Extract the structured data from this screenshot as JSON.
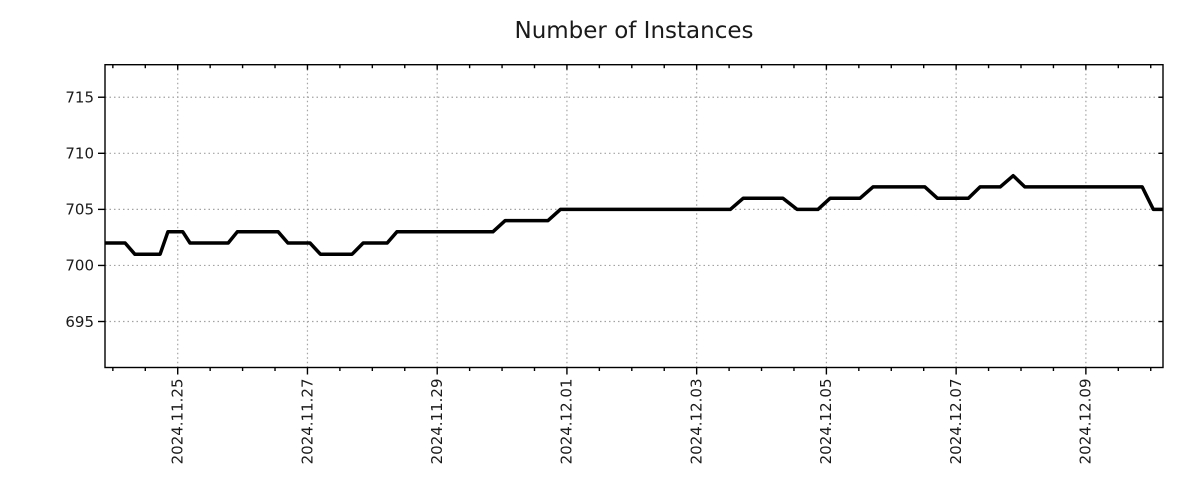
{
  "figure": {
    "title": "Number of Instances"
  },
  "chart_data": {
    "type": "line",
    "title": "Number of Instances",
    "xlabel": "",
    "ylabel": "",
    "legend": "none",
    "grid": {
      "show": true,
      "color": "#a3a3a3",
      "style": "dotted"
    },
    "frame_color": "#000000",
    "x_axis": {
      "unit": "days",
      "range": [
        0,
        16.31
      ],
      "major_ticks": [
        {
          "d": 1.121,
          "label": "2024.11.25"
        },
        {
          "d": 3.121,
          "label": "2024.11.27"
        },
        {
          "d": 5.121,
          "label": "2024.11.29"
        },
        {
          "d": 7.121,
          "label": "2024.12.01"
        },
        {
          "d": 9.121,
          "label": "2024.12.03"
        },
        {
          "d": 11.121,
          "label": "2024.12.05"
        },
        {
          "d": 13.121,
          "label": "2024.12.07"
        },
        {
          "d": 15.121,
          "label": "2024.12.09"
        }
      ],
      "minor_ticks": {
        "start": 0.121,
        "step": 0.5
      }
    },
    "y_axis": {
      "range": [
        690.9,
        717.9
      ],
      "ticks": [
        695,
        700,
        705,
        710,
        715
      ]
    },
    "series": [
      {
        "name": "instances",
        "color": "#000000",
        "points": [
          [
            0.0,
            702
          ],
          [
            0.31,
            702
          ],
          [
            0.46,
            701
          ],
          [
            0.85,
            701
          ],
          [
            0.97,
            703
          ],
          [
            1.2,
            703
          ],
          [
            1.31,
            702
          ],
          [
            1.9,
            702
          ],
          [
            2.04,
            703
          ],
          [
            2.67,
            703
          ],
          [
            2.82,
            702
          ],
          [
            3.16,
            702
          ],
          [
            3.32,
            701
          ],
          [
            3.81,
            701
          ],
          [
            3.98,
            702
          ],
          [
            4.35,
            702
          ],
          [
            4.5,
            703
          ],
          [
            5.98,
            703
          ],
          [
            6.17,
            704
          ],
          [
            6.83,
            704
          ],
          [
            7.02,
            705
          ],
          [
            9.64,
            705
          ],
          [
            9.84,
            706
          ],
          [
            10.45,
            706
          ],
          [
            10.67,
            705
          ],
          [
            10.99,
            705
          ],
          [
            11.18,
            706
          ],
          [
            11.64,
            706
          ],
          [
            11.84,
            707
          ],
          [
            12.64,
            707
          ],
          [
            12.83,
            706
          ],
          [
            13.31,
            706
          ],
          [
            13.49,
            707
          ],
          [
            13.8,
            707
          ],
          [
            14.0,
            708
          ],
          [
            14.18,
            707
          ],
          [
            15.99,
            707
          ],
          [
            16.16,
            705
          ],
          [
            16.31,
            705
          ]
        ]
      }
    ]
  }
}
